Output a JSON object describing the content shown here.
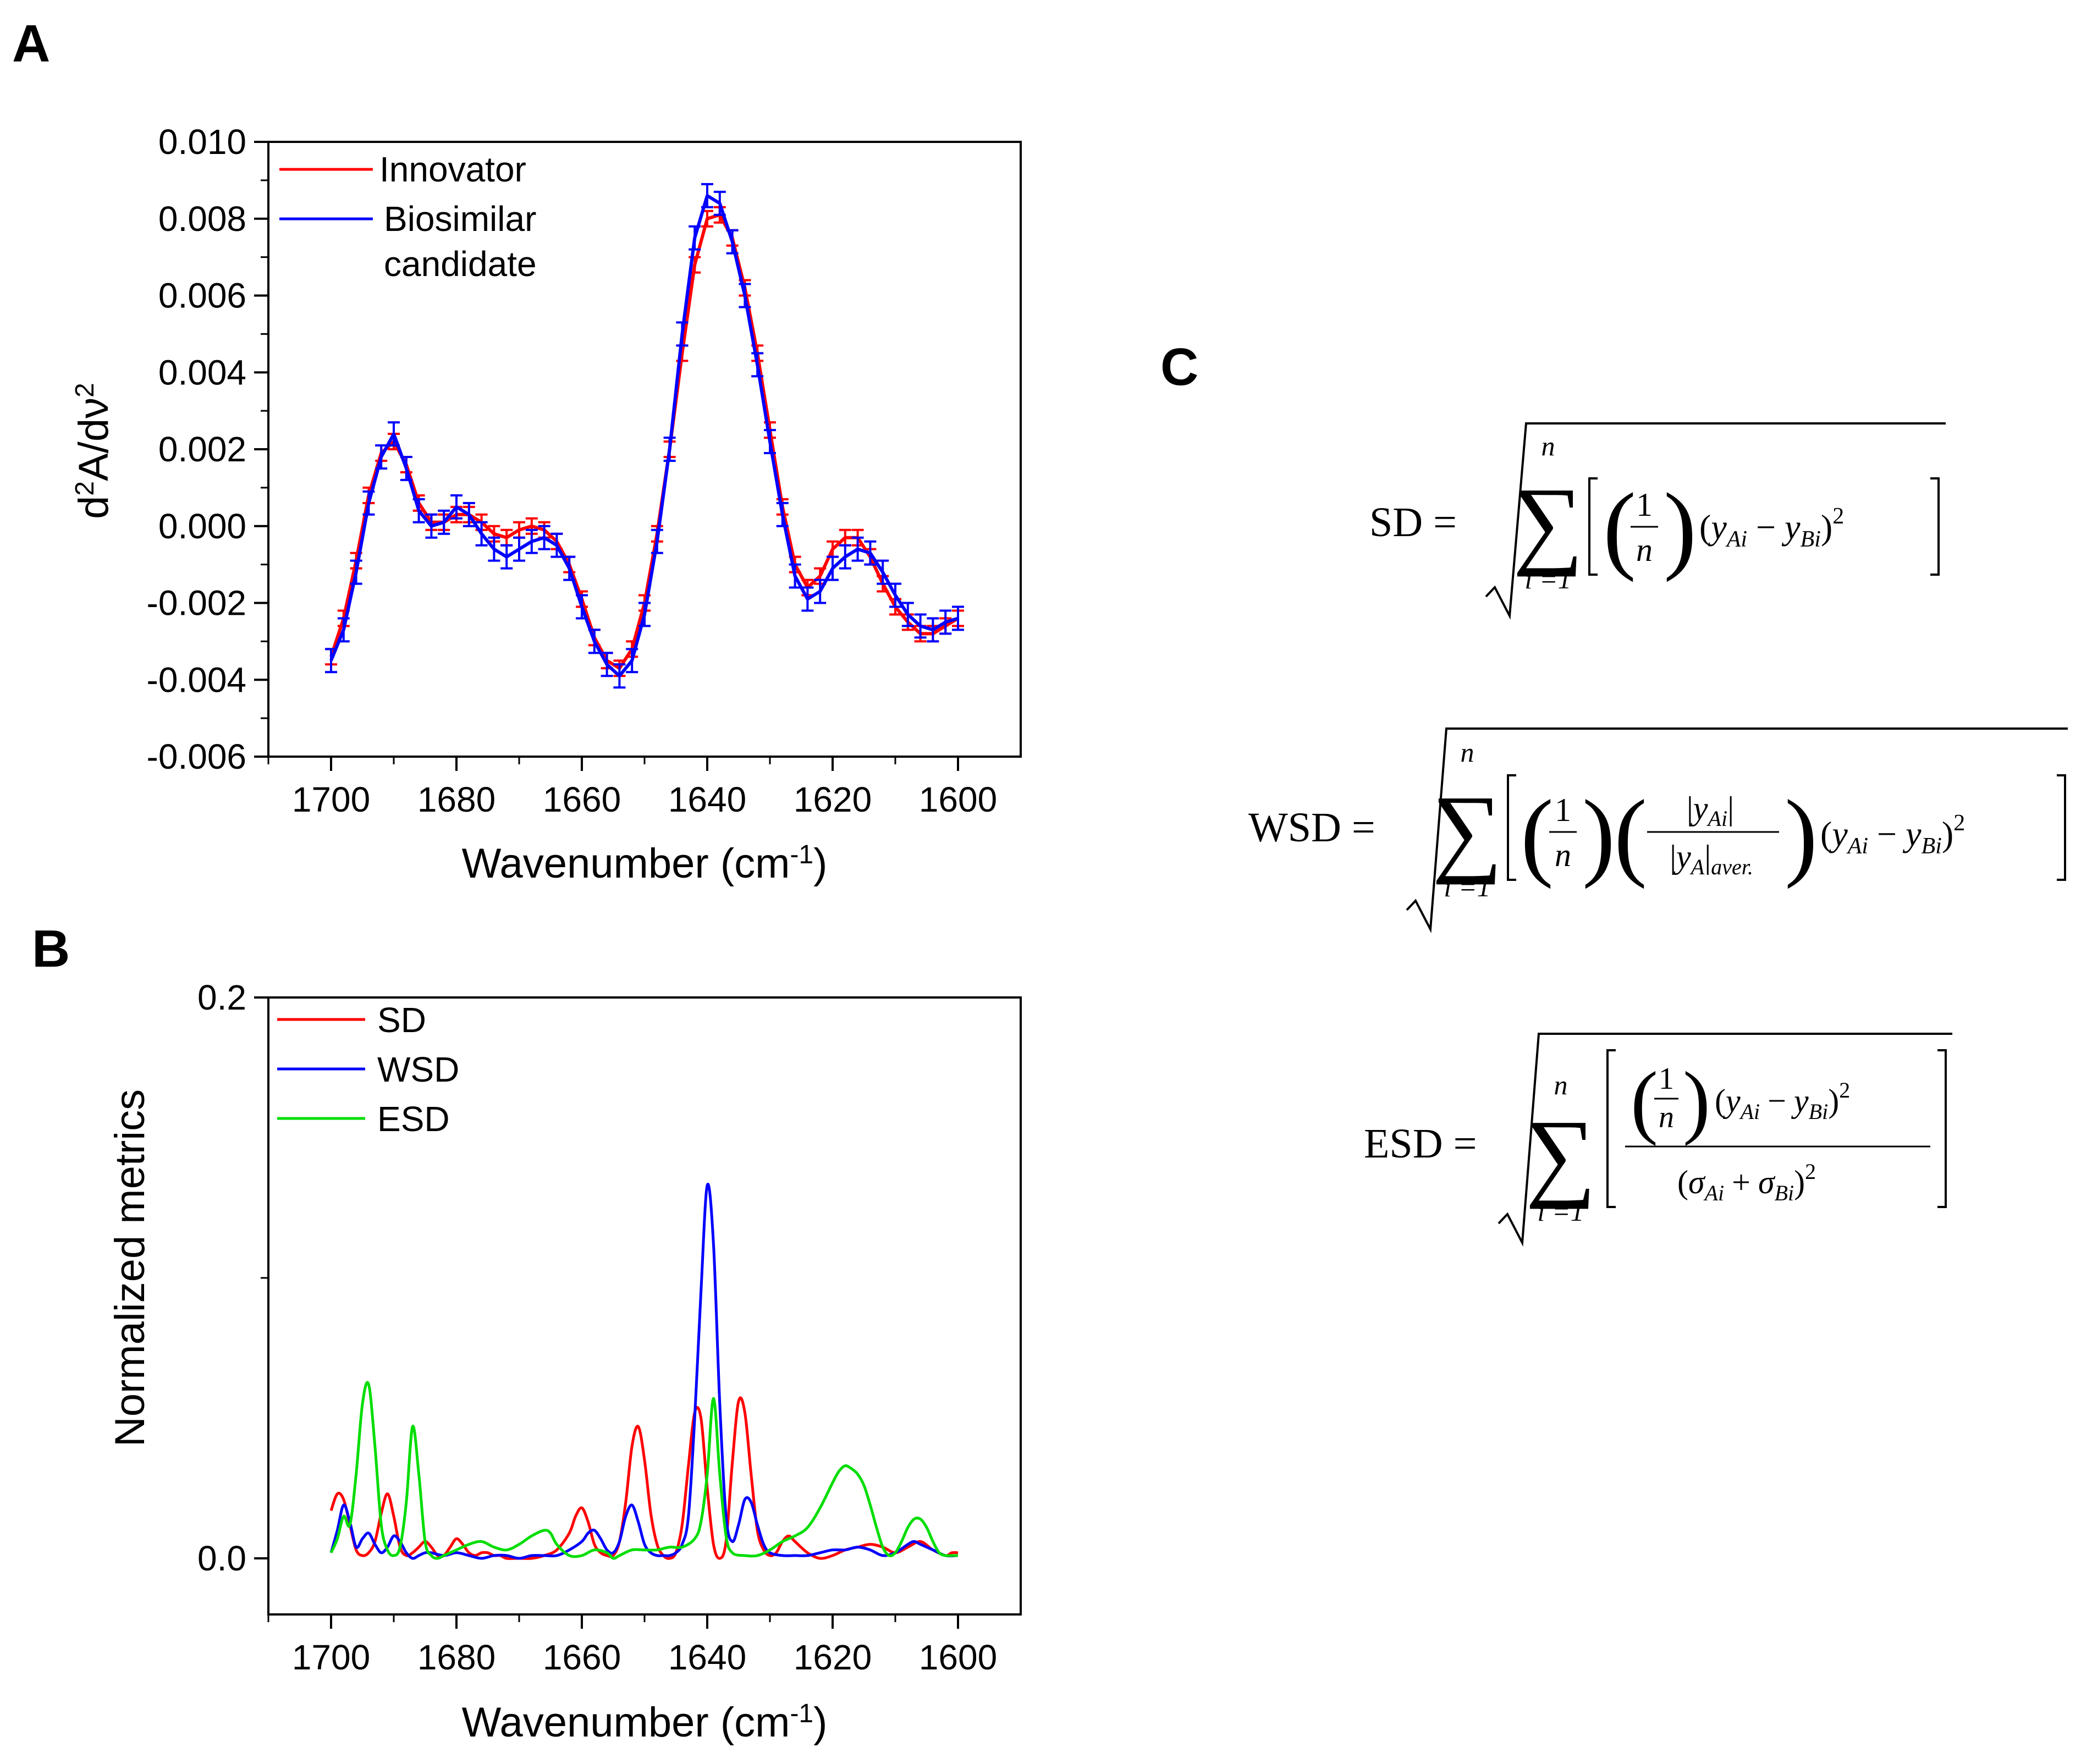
{
  "panels": {
    "a": "A",
    "b": "B",
    "c": "C"
  },
  "colors": {
    "innovator": "#ff0000",
    "biosimilar": "#0000ff",
    "sd": "#ff0000",
    "wsd": "#0000ff",
    "esd": "#00dd00"
  },
  "chart_data": [
    {
      "type": "line",
      "id": "panel-a",
      "xlabel": "Wavenumber (cm",
      "xlabel_sup": "-1",
      "xlabel_end": ")",
      "ylabel_parts": [
        "d",
        "2",
        "A/dν",
        "2"
      ],
      "xlim": [
        1710,
        1590
      ],
      "ylim": [
        -0.006,
        0.01
      ],
      "xticks": [
        1700,
        1680,
        1660,
        1640,
        1620,
        1600
      ],
      "xtick_labels": [
        "1700",
        "1680",
        "1660",
        "1640",
        "1620",
        "1600"
      ],
      "yticks": [
        -0.006,
        -0.004,
        -0.002,
        0.0,
        0.002,
        0.004,
        0.006,
        0.008,
        0.01
      ],
      "ytick_labels": [
        "-0.006",
        "-0.004",
        "-0.002",
        "0.000",
        "0.002",
        "0.004",
        "0.006",
        "0.008",
        "0.010"
      ],
      "legend": [
        "Innovator",
        "Biosimilar",
        "candidate"
      ],
      "x": [
        1700,
        1698,
        1696,
        1694,
        1692,
        1690,
        1688,
        1686,
        1684,
        1682,
        1680,
        1678,
        1676,
        1674,
        1672,
        1670,
        1668,
        1666,
        1664,
        1662,
        1660,
        1658,
        1656,
        1654,
        1652,
        1650,
        1648,
        1646,
        1644,
        1642,
        1640,
        1638,
        1636,
        1634,
        1632,
        1630,
        1628,
        1626,
        1624,
        1622,
        1620,
        1618,
        1616,
        1614,
        1612,
        1610,
        1608,
        1606,
        1604,
        1602,
        1600
      ],
      "series": [
        {
          "name": "Innovator",
          "error": 0.0002,
          "values": [
            -0.0034,
            -0.0024,
            -0.0009,
            0.0008,
            0.0019,
            0.0022,
            0.0016,
            0.0006,
            0.0001,
            0.0001,
            0.0003,
            0.0003,
            0.0001,
            -0.0002,
            -0.0003,
            -0.0001,
            0.0,
            -0.0001,
            -0.0004,
            -0.001,
            -0.0019,
            -0.0029,
            -0.0035,
            -0.0037,
            -0.0032,
            -0.002,
            -0.0002,
            0.002,
            0.0045,
            0.0068,
            0.008,
            0.0081,
            0.0075,
            0.0062,
            0.0045,
            0.0025,
            0.0005,
            -0.001,
            -0.0016,
            -0.0013,
            -0.0006,
            -0.0003,
            -0.0003,
            -0.0008,
            -0.0015,
            -0.0021,
            -0.0025,
            -0.0028,
            -0.0028,
            -0.0026,
            -0.0024
          ]
        },
        {
          "name": "Biosimilar candidate",
          "error": 0.0003,
          "values": [
            -0.0035,
            -0.0027,
            -0.0012,
            0.0006,
            0.0018,
            0.0024,
            0.0015,
            0.0004,
            0.0,
            0.0001,
            0.0005,
            0.0003,
            -0.0002,
            -0.0006,
            -0.0008,
            -0.0006,
            -0.0004,
            -0.0003,
            -0.0005,
            -0.0011,
            -0.0021,
            -0.003,
            -0.0036,
            -0.0039,
            -0.0035,
            -0.0023,
            -0.0004,
            0.002,
            0.005,
            0.0075,
            0.0086,
            0.0084,
            0.0074,
            0.006,
            0.0042,
            0.0022,
            0.0003,
            -0.0013,
            -0.0019,
            -0.0017,
            -0.0011,
            -0.0008,
            -0.0006,
            -0.0007,
            -0.0012,
            -0.0018,
            -0.0023,
            -0.0026,
            -0.0027,
            -0.0025,
            -0.0024
          ]
        }
      ]
    },
    {
      "type": "line",
      "id": "panel-b",
      "xlabel": "Wavenumber (cm",
      "xlabel_sup": "-1",
      "xlabel_end": ")",
      "ylabel": "Normalized metrics",
      "xlim": [
        1710,
        1590
      ],
      "ylim": [
        -0.02,
        0.2
      ],
      "xticks": [
        1700,
        1680,
        1660,
        1640,
        1620,
        1600
      ],
      "xtick_labels": [
        "1700",
        "1680",
        "1660",
        "1640",
        "1620",
        "1600"
      ],
      "yticks": [
        0.0,
        0.2
      ],
      "ytick_labels": [
        "0.0",
        "0.2"
      ],
      "legend": [
        "SD",
        "WSD",
        "ESD"
      ],
      "series": [
        {
          "name": "SD",
          "x": [
            1700,
            1699,
            1698,
            1697,
            1696,
            1695,
            1694,
            1693,
            1692,
            1691,
            1690,
            1689,
            1688,
            1687,
            1686,
            1685,
            1684,
            1683,
            1682,
            1681,
            1680,
            1679,
            1678,
            1677,
            1676,
            1675,
            1674,
            1673,
            1672,
            1670,
            1668,
            1666,
            1664,
            1662,
            1661,
            1660,
            1659,
            1658,
            1657,
            1656,
            1655,
            1654,
            1653,
            1652,
            1651,
            1650,
            1649,
            1648,
            1647,
            1646,
            1645,
            1644,
            1643,
            1642,
            1641,
            1640,
            1639,
            1638,
            1637,
            1636,
            1635,
            1634,
            1633,
            1632,
            1631,
            1630,
            1629,
            1628,
            1627,
            1626,
            1624,
            1622,
            1620,
            1618,
            1616,
            1614,
            1612,
            1610,
            1608,
            1606,
            1604,
            1602,
            1601,
            1600
          ],
          "values": [
            0.017,
            0.023,
            0.021,
            0.012,
            0.003,
            0.001,
            0.002,
            0.006,
            0.016,
            0.023,
            0.015,
            0.004,
            0.001,
            0.002,
            0.004,
            0.006,
            0.004,
            0.001,
            0.001,
            0.004,
            0.007,
            0.005,
            0.002,
            0.001,
            0.002,
            0.002,
            0.001,
            0.001,
            0.0,
            0.0,
            0.0,
            0.001,
            0.003,
            0.009,
            0.015,
            0.018,
            0.013,
            0.005,
            0.002,
            0.001,
            0.001,
            0.006,
            0.02,
            0.04,
            0.047,
            0.035,
            0.016,
            0.005,
            0.001,
            0.0,
            0.002,
            0.012,
            0.033,
            0.052,
            0.05,
            0.025,
            0.005,
            0.0,
            0.006,
            0.034,
            0.056,
            0.052,
            0.03,
            0.01,
            0.003,
            0.001,
            0.002,
            0.006,
            0.008,
            0.006,
            0.002,
            0.0,
            0.001,
            0.003,
            0.004,
            0.005,
            0.004,
            0.002,
            0.004,
            0.006,
            0.003,
            0.001,
            0.002,
            0.002
          ]
        },
        {
          "name": "WSD",
          "x": [
            1700,
            1699,
            1698,
            1697,
            1696,
            1695,
            1694,
            1693,
            1692,
            1691,
            1690,
            1689,
            1688,
            1687,
            1686,
            1685,
            1684,
            1682,
            1680,
            1678,
            1676,
            1674,
            1672,
            1670,
            1668,
            1666,
            1664,
            1662,
            1660,
            1659,
            1658,
            1657,
            1656,
            1655,
            1654,
            1653,
            1652,
            1651,
            1650,
            1649,
            1648,
            1647,
            1646,
            1645,
            1644,
            1643,
            1642,
            1641,
            1640,
            1639,
            1638,
            1637,
            1636,
            1635,
            1634,
            1633,
            1632,
            1631,
            1630,
            1628,
            1626,
            1624,
            1622,
            1620,
            1618,
            1616,
            1614,
            1612,
            1610,
            1608,
            1607,
            1606,
            1604,
            1602,
            1600
          ],
          "values": [
            0.002,
            0.01,
            0.019,
            0.013,
            0.004,
            0.007,
            0.009,
            0.005,
            0.002,
            0.004,
            0.008,
            0.006,
            0.002,
            0.0,
            0.001,
            0.002,
            0.002,
            0.001,
            0.002,
            0.001,
            0.0,
            0.001,
            0.001,
            0.0,
            0.001,
            0.001,
            0.001,
            0.003,
            0.006,
            0.009,
            0.01,
            0.007,
            0.003,
            0.002,
            0.006,
            0.015,
            0.019,
            0.013,
            0.005,
            0.002,
            0.001,
            0.001,
            0.001,
            0.002,
            0.005,
            0.015,
            0.05,
            0.095,
            0.133,
            0.112,
            0.055,
            0.015,
            0.006,
            0.012,
            0.021,
            0.02,
            0.012,
            0.005,
            0.002,
            0.001,
            0.001,
            0.001,
            0.002,
            0.003,
            0.003,
            0.004,
            0.003,
            0.001,
            0.002,
            0.005,
            0.006,
            0.005,
            0.003,
            0.001,
            0.001
          ]
        },
        {
          "name": "ESD",
          "x": [
            1700,
            1699,
            1698,
            1697,
            1696,
            1695,
            1694,
            1693,
            1692,
            1691,
            1690,
            1689,
            1688,
            1687,
            1686,
            1685,
            1684,
            1683,
            1682,
            1680,
            1678,
            1676,
            1674,
            1672,
            1670,
            1668,
            1666,
            1665,
            1664,
            1662,
            1660,
            1658,
            1656,
            1655,
            1654,
            1652,
            1650,
            1648,
            1646,
            1644,
            1642,
            1641,
            1640,
            1639,
            1638,
            1637,
            1636,
            1634,
            1632,
            1630,
            1628,
            1626,
            1624,
            1622,
            1620,
            1619,
            1618,
            1617,
            1616,
            1615,
            1614,
            1613,
            1612,
            1611,
            1610,
            1609,
            1608,
            1607,
            1606,
            1605,
            1604,
            1603,
            1602,
            1601,
            1600
          ],
          "values": [
            0.002,
            0.007,
            0.015,
            0.012,
            0.03,
            0.055,
            0.062,
            0.04,
            0.012,
            0.003,
            0.001,
            0.004,
            0.02,
            0.047,
            0.03,
            0.006,
            0.001,
            0.0,
            0.001,
            0.003,
            0.005,
            0.006,
            0.004,
            0.003,
            0.005,
            0.008,
            0.01,
            0.009,
            0.005,
            0.001,
            0.001,
            0.003,
            0.002,
            0.0,
            0.001,
            0.003,
            0.003,
            0.003,
            0.004,
            0.004,
            0.007,
            0.013,
            0.03,
            0.057,
            0.03,
            0.008,
            0.002,
            0.001,
            0.001,
            0.003,
            0.006,
            0.008,
            0.011,
            0.018,
            0.027,
            0.031,
            0.033,
            0.032,
            0.03,
            0.026,
            0.019,
            0.011,
            0.004,
            0.001,
            0.002,
            0.006,
            0.011,
            0.014,
            0.014,
            0.011,
            0.006,
            0.002,
            0.001,
            0.001,
            0.001
          ]
        }
      ]
    }
  ],
  "equations": {
    "sd_label": "SD =",
    "wsd_label": "WSD =",
    "esd_label": "ESD =",
    "sum_top": "n",
    "sum_bottom": "i =1",
    "sum_sign": "∑",
    "one": "1",
    "n": "n",
    "y_ai": "y",
    "y_ai_sub": "Ai",
    "y_bi_sub": "Bi",
    "y_a_sub": "A",
    "aver_sub": "aver.",
    "minus": "−",
    "plus": "+",
    "sq": "2",
    "sigma": "σ",
    "bar": "|"
  }
}
